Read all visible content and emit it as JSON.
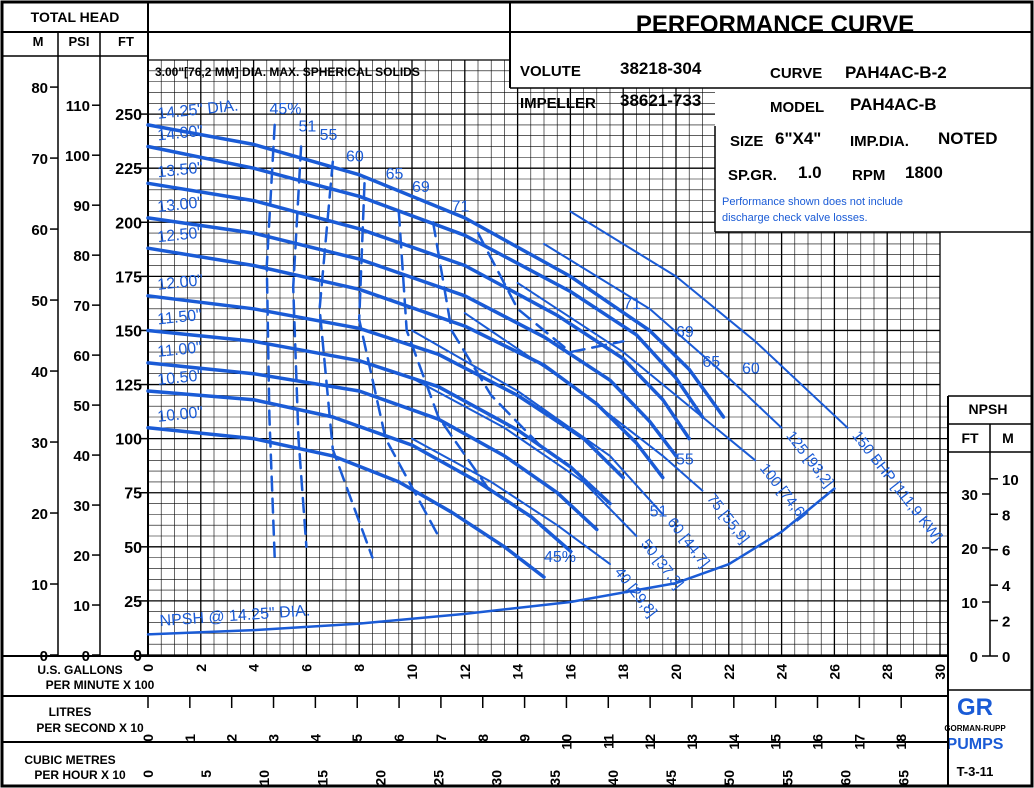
{
  "chart_data": {
    "type": "line",
    "title": "PERFORMANCE CURVE",
    "header_left": "TOTAL HEAD",
    "unit_labels": {
      "m": "M",
      "psi": "PSI",
      "ft": "FT"
    },
    "solids_note": "3.00\"[76,2 MM] DIA. MAX. SPHERICAL SOLIDS",
    "info": {
      "volute_label": "VOLUTE",
      "volute": "38218-304",
      "curve_label": "CURVE",
      "curve": "PAH4AC-B-2",
      "impeller_label": "IMPELLER",
      "impeller": "38621-733",
      "model_label": "MODEL",
      "model": "PAH4AC-B",
      "size_label": "SIZE",
      "size": "6\"X4\"",
      "impdia_label": "IMP.DIA.",
      "impdia": "NOTED",
      "spgr_label": "SP.GR.",
      "spgr": "1.0",
      "rpm_label": "RPM",
      "rpm": "1800",
      "note_line1": "Performance shown does not include",
      "note_line2": "discharge check valve losses."
    },
    "x_axis": {
      "gpm_label_1": "U.S. GALLONS",
      "gpm_label_2": "PER MINUTE  X 100",
      "gpm_ticks": [
        "0",
        "2",
        "4",
        "6",
        "8",
        "10",
        "12",
        "14",
        "16",
        "18",
        "20",
        "22",
        "24",
        "26",
        "28",
        "30"
      ],
      "lps_label_1": "LITRES",
      "lps_label_2": "PER SECOND  X 10",
      "lps_ticks": [
        "0",
        "1",
        "2",
        "3",
        "4",
        "5",
        "6",
        "7",
        "8",
        "9",
        "10",
        "11",
        "12",
        "13",
        "14",
        "15",
        "16",
        "17",
        "18"
      ],
      "m3h_label_1": "CUBIC METRES",
      "m3h_label_2": "PER HOUR X 10",
      "m3h_ticks": [
        "0",
        "5",
        "10",
        "15",
        "20",
        "25",
        "30",
        "35",
        "40",
        "45",
        "50",
        "55",
        "60",
        "65"
      ]
    },
    "y_axis": {
      "ft_ticks": [
        "0",
        "25",
        "50",
        "75",
        "100",
        "125",
        "150",
        "175",
        "200",
        "225",
        "250"
      ],
      "psi_ticks": [
        "0",
        "10",
        "20",
        "30",
        "40",
        "50",
        "60",
        "70",
        "80",
        "90",
        "100",
        "110"
      ],
      "m_ticks": [
        "0",
        "10",
        "20",
        "30",
        "40",
        "50",
        "60",
        "70",
        "80"
      ],
      "xlim": [
        0,
        30
      ],
      "ylim_ft": [
        0,
        275
      ]
    },
    "npsh_axis": {
      "title": "NPSH",
      "ft_label": "FT",
      "m_label": "M",
      "ft_ticks": [
        "0",
        "10",
        "20",
        "30"
      ],
      "m_ticks": [
        "0",
        "2",
        "4",
        "6",
        "8",
        "10"
      ]
    },
    "head_curves": [
      {
        "name": "14.25\" DIA.",
        "points": [
          [
            0,
            245
          ],
          [
            4,
            236
          ],
          [
            8,
            222
          ],
          [
            12,
            202
          ],
          [
            16,
            175
          ],
          [
            19,
            150
          ],
          [
            20.5,
            132
          ],
          [
            21.8,
            110
          ]
        ]
      },
      {
        "name": "14.00\"",
        "points": [
          [
            0,
            235
          ],
          [
            4,
            225
          ],
          [
            8,
            212
          ],
          [
            12,
            194
          ],
          [
            16,
            168
          ],
          [
            18.5,
            148
          ],
          [
            20,
            128
          ],
          [
            21,
            110
          ]
        ]
      },
      {
        "name": "13.50\"",
        "points": [
          [
            0,
            218
          ],
          [
            4,
            210
          ],
          [
            8,
            197
          ],
          [
            12,
            180
          ],
          [
            15.5,
            157
          ],
          [
            18,
            137
          ],
          [
            19.5,
            118
          ],
          [
            20.5,
            100
          ]
        ]
      },
      {
        "name": "13.00\"",
        "points": [
          [
            0,
            202
          ],
          [
            4,
            195
          ],
          [
            8,
            183
          ],
          [
            12,
            166
          ],
          [
            15,
            147
          ],
          [
            17.5,
            127
          ],
          [
            19,
            108
          ],
          [
            20,
            92
          ]
        ]
      },
      {
        "name": "12.50\"",
        "points": [
          [
            0,
            188
          ],
          [
            4,
            180
          ],
          [
            8,
            169
          ],
          [
            12,
            152
          ],
          [
            15,
            134
          ],
          [
            17,
            116
          ],
          [
            18.5,
            98
          ],
          [
            19.5,
            82
          ]
        ]
      },
      {
        "name": "12.00\"",
        "points": [
          [
            0,
            166
          ],
          [
            4,
            160
          ],
          [
            8,
            151
          ],
          [
            11,
            139
          ],
          [
            14,
            120
          ],
          [
            16.5,
            100
          ],
          [
            18,
            82
          ]
        ]
      },
      {
        "name": "11.50\"",
        "points": [
          [
            0,
            150
          ],
          [
            4,
            145
          ],
          [
            8,
            136
          ],
          [
            11,
            124
          ],
          [
            14,
            104
          ],
          [
            16,
            87
          ],
          [
            17.5,
            70
          ]
        ]
      },
      {
        "name": "11.00\"",
        "points": [
          [
            0,
            135
          ],
          [
            4,
            130
          ],
          [
            8,
            122
          ],
          [
            11,
            109
          ],
          [
            13.5,
            92
          ],
          [
            15.5,
            75
          ],
          [
            17,
            58
          ]
        ]
      },
      {
        "name": "10.50\"",
        "points": [
          [
            0,
            122
          ],
          [
            4,
            118
          ],
          [
            7,
            110
          ],
          [
            10,
            97
          ],
          [
            12.5,
            80
          ],
          [
            14.5,
            64
          ],
          [
            16,
            48
          ]
        ]
      },
      {
        "name": "10.00\"",
        "points": [
          [
            0,
            105
          ],
          [
            4,
            100
          ],
          [
            7,
            92
          ],
          [
            9.5,
            80
          ],
          [
            11.5,
            66
          ],
          [
            13.5,
            50
          ],
          [
            15,
            36
          ]
        ]
      }
    ],
    "efficiency_labels": [
      "45%",
      "51",
      "55",
      "60",
      "65",
      "69",
      "71",
      "71",
      "69",
      "65",
      "60",
      "55",
      "51",
      "45%"
    ],
    "bhp_lines": [
      {
        "name": "40 [29,8]",
        "points": [
          [
            10,
            100
          ],
          [
            13,
            80
          ],
          [
            15.5,
            60
          ],
          [
            17.5,
            42
          ]
        ]
      },
      {
        "name": "50 [37,3]",
        "points": [
          [
            10,
            128
          ],
          [
            13.5,
            105
          ],
          [
            16.5,
            80
          ],
          [
            18.5,
            55
          ]
        ]
      },
      {
        "name": "60 [44,7]",
        "points": [
          [
            10,
            150
          ],
          [
            14,
            122
          ],
          [
            17.5,
            92
          ],
          [
            19.5,
            65
          ]
        ]
      },
      {
        "name": "75 [55,9]",
        "points": [
          [
            12,
            158
          ],
          [
            16,
            125
          ],
          [
            19.5,
            92
          ],
          [
            21,
            76
          ]
        ]
      },
      {
        "name": "100 [74,6]",
        "points": [
          [
            14,
            172
          ],
          [
            18,
            140
          ],
          [
            21,
            110
          ],
          [
            23,
            90
          ]
        ]
      },
      {
        "name": "125 [93,2]",
        "points": [
          [
            15,
            190
          ],
          [
            19,
            160
          ],
          [
            22,
            128
          ],
          [
            24,
            105
          ]
        ]
      },
      {
        "name": "150 BHP [111,9 KW]",
        "points": [
          [
            16,
            205
          ],
          [
            20,
            175
          ],
          [
            23,
            145
          ],
          [
            26.5,
            105
          ]
        ]
      }
    ],
    "npsh_curve": {
      "name": "NPSH @ 14.25\" DIA.",
      "points": [
        [
          0,
          4
        ],
        [
          4,
          4.8
        ],
        [
          8,
          6
        ],
        [
          12,
          7.8
        ],
        [
          16,
          10
        ],
        [
          20,
          13.5
        ],
        [
          22,
          17
        ],
        [
          24,
          23
        ],
        [
          26,
          31
        ]
      ]
    },
    "logo_text": "GR",
    "logo_sub": "GORMAN-RUPP",
    "logo_brand": "PUMPS",
    "drawing_no": "T-3-11"
  }
}
